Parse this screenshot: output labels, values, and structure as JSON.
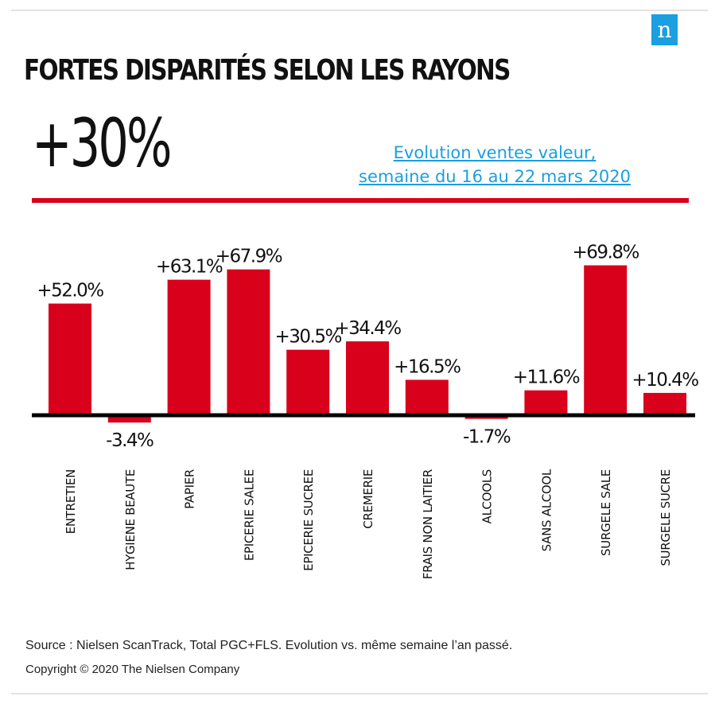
{
  "logo_letter": "n",
  "header": {
    "title": "FORTES DISPARITÉS SELON LES RAYONS",
    "big_number": "+30%",
    "subtitle_line1": "Evolution ventes valeur,",
    "subtitle_line2": "semaine du 16 au 22 mars 2020"
  },
  "colors": {
    "bar": "#d9001b",
    "accent_rule": "#d9001b",
    "link": "#1a9fe0",
    "axis": "#000000"
  },
  "chart_data": {
    "type": "bar",
    "categories": [
      "ENTRETIEN",
      "HYGIENE BEAUTE",
      "PAPIER",
      "EPICERIE SALEE",
      "EPICERIE SUCREE",
      "CREMERIE",
      "FRAIS NON LAITIER",
      "ALCOOLS",
      "SANS ALCOOL",
      "SURGELE SALE",
      "SURGELE SUCRE"
    ],
    "values": [
      52.0,
      -3.4,
      63.1,
      67.9,
      30.5,
      34.4,
      16.5,
      -1.7,
      11.6,
      69.8,
      10.4
    ],
    "value_labels": [
      "+52.0%",
      "-3.4%",
      "+63.1%",
      "+67.9%",
      "+30.5%",
      "+34.4%",
      "+16.5%",
      "-1.7%",
      "+11.6%",
      "+69.8%",
      "+10.4%"
    ],
    "title": "",
    "xlabel": "",
    "ylabel": "",
    "grid": false
  },
  "footer": {
    "source": "Source : Nielsen ScanTrack, Total PGC+FLS. Evolution vs. même semaine l’an passé.",
    "copyright": "Copyright © 2020 The Nielsen Company"
  }
}
